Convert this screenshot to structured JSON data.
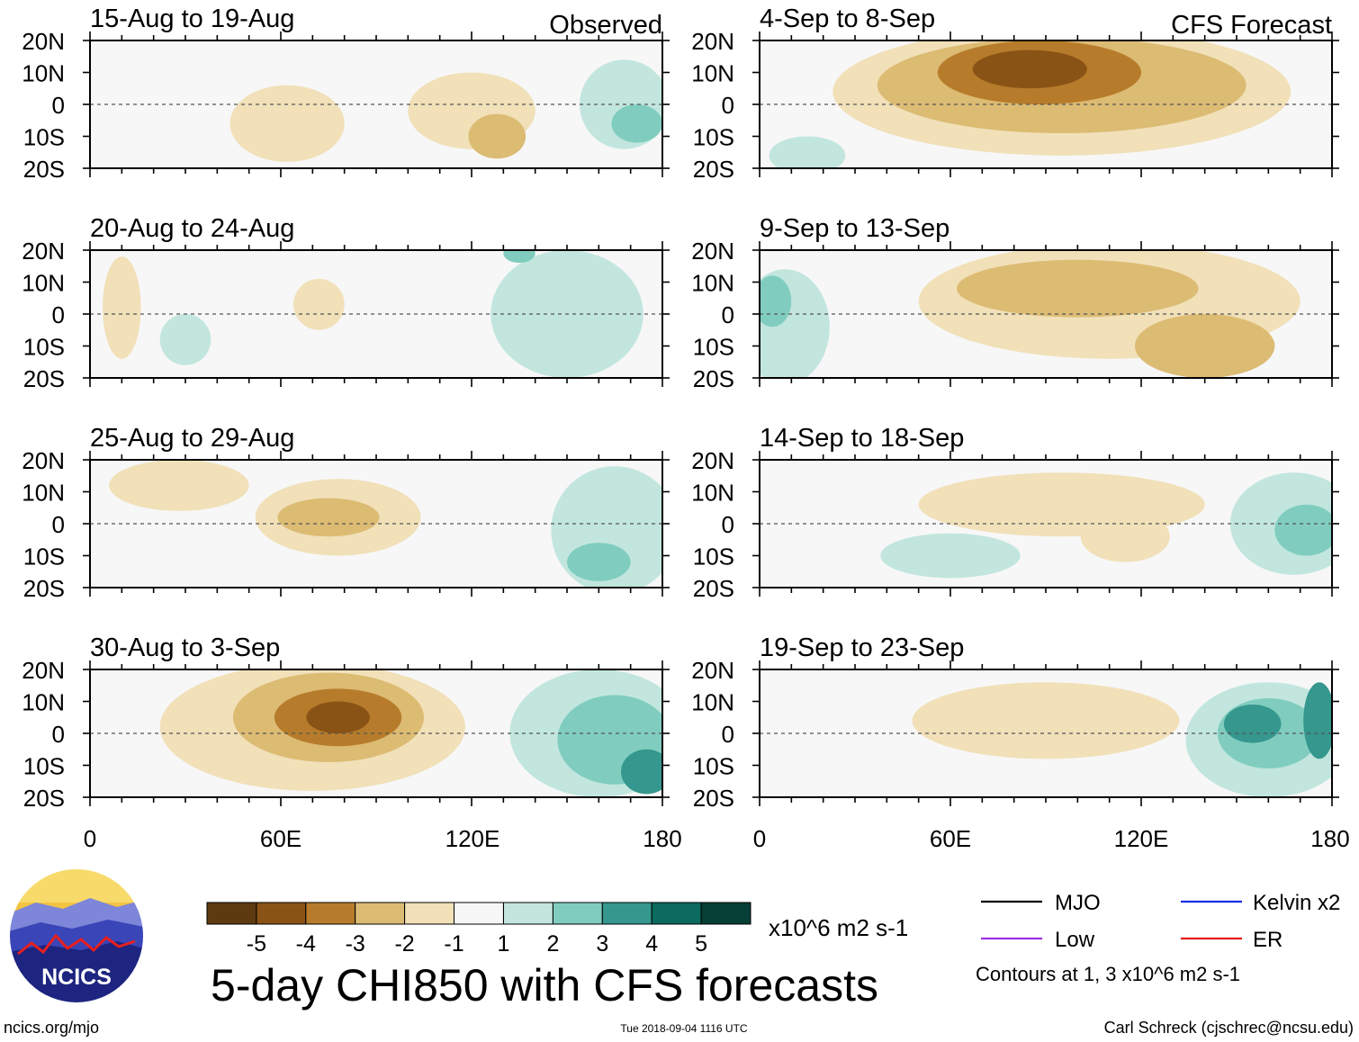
{
  "chart_data": {
    "type": "heatmap",
    "title": "5-day CHI850 with CFS forecasts",
    "variable": "CHI850",
    "units": "x10^6 m2 s-1",
    "column_labels": {
      "observed": "Observed",
      "forecast": "CFS Forecast"
    },
    "x_range": [
      0,
      180
    ],
    "y_range": [
      -20,
      20
    ],
    "x_ticks": [
      0,
      60,
      120,
      180
    ],
    "x_tick_labels": [
      "0",
      "60E",
      "120E",
      "180"
    ],
    "y_ticks": [
      20,
      10,
      0,
      -10,
      -20
    ],
    "y_tick_labels": [
      "20N",
      "10N",
      "0",
      "10S",
      "20S"
    ],
    "colorbar": {
      "levels": [
        -5,
        -4,
        -3,
        -2,
        -1,
        1,
        2,
        3,
        4,
        5
      ],
      "labels": [
        "-5",
        "-4",
        "-3",
        "-2",
        "-1",
        "1",
        "2",
        "3",
        "4",
        "5"
      ],
      "colors": [
        "#5e3a10",
        "#8a5316",
        "#b77c2b",
        "#dcbb73",
        "#f1e0b8",
        "#f7f7f7",
        "#c2e6de",
        "#80cdbf",
        "#35978e",
        "#0b6b5e",
        "#063f36"
      ]
    },
    "legend": [
      {
        "label": "MJO",
        "color": "#000000"
      },
      {
        "label": "Kelvin x2",
        "color": "#1a2ee6"
      },
      {
        "label": "Low",
        "color": "#9b30e6"
      },
      {
        "label": "ER",
        "color": "#e61a1a"
      }
    ],
    "contour_note": "Contours at 1, 3 x10^6 m2 s-1",
    "panels": [
      {
        "id": "obs-1",
        "label": "15-Aug to 19-Aug",
        "kind": "observed",
        "fields": [
          {
            "lon": 62,
            "lat": -6,
            "rx": 18,
            "ry": 12,
            "value": -1.2
          },
          {
            "lon": 120,
            "lat": -2,
            "rx": 20,
            "ry": 12,
            "value": -1.4
          },
          {
            "lon": 128,
            "lat": -10,
            "rx": 9,
            "ry": 7,
            "value": -2.2
          },
          {
            "lon": 168,
            "lat": 0,
            "rx": 14,
            "ry": 14,
            "value": 1.3
          },
          {
            "lon": 172,
            "lat": -6,
            "rx": 8,
            "ry": 6,
            "value": 2.1
          }
        ]
      },
      {
        "id": "obs-2",
        "label": "20-Aug to 24-Aug",
        "kind": "observed",
        "fields": [
          {
            "lon": 72,
            "lat": 3,
            "rx": 8,
            "ry": 8,
            "value": -1.2
          },
          {
            "lon": 10,
            "lat": 2,
            "rx": 6,
            "ry": 16,
            "value": -1.1
          },
          {
            "lon": 30,
            "lat": -8,
            "rx": 8,
            "ry": 8,
            "value": 1.2
          },
          {
            "lon": 150,
            "lat": 0,
            "rx": 24,
            "ry": 20,
            "value": 1.3
          },
          {
            "lon": 135,
            "lat": 19,
            "rx": 5,
            "ry": 3,
            "value": 2.2
          }
        ]
      },
      {
        "id": "obs-3",
        "label": "25-Aug to 29-Aug",
        "kind": "observed",
        "fields": [
          {
            "lon": 28,
            "lat": 12,
            "rx": 22,
            "ry": 8,
            "value": -1.1
          },
          {
            "lon": 78,
            "lat": 2,
            "rx": 26,
            "ry": 12,
            "value": -1.6
          },
          {
            "lon": 75,
            "lat": 2,
            "rx": 16,
            "ry": 6,
            "value": -2.3
          },
          {
            "lon": 165,
            "lat": -2,
            "rx": 20,
            "ry": 20,
            "value": 1.4
          },
          {
            "lon": 160,
            "lat": -12,
            "rx": 10,
            "ry": 6,
            "value": 2.2
          }
        ]
      },
      {
        "id": "obs-4",
        "label": "30-Aug to 3-Sep",
        "kind": "observed",
        "fields": [
          {
            "lon": 70,
            "lat": 2,
            "rx": 48,
            "ry": 20,
            "value": -1.3
          },
          {
            "lon": 75,
            "lat": 5,
            "rx": 30,
            "ry": 14,
            "value": -2.4
          },
          {
            "lon": 78,
            "lat": 5,
            "rx": 20,
            "ry": 9,
            "value": -3.3
          },
          {
            "lon": 78,
            "lat": 5,
            "rx": 10,
            "ry": 5,
            "value": -4.2
          },
          {
            "lon": 160,
            "lat": 0,
            "rx": 28,
            "ry": 20,
            "value": 1.3
          },
          {
            "lon": 165,
            "lat": -2,
            "rx": 18,
            "ry": 14,
            "value": 2.2
          },
          {
            "lon": 175,
            "lat": -12,
            "rx": 8,
            "ry": 7,
            "value": 3.1
          }
        ]
      },
      {
        "id": "fc-1",
        "label": "4-Sep to 8-Sep",
        "kind": "forecast",
        "fields": [
          {
            "lon": 95,
            "lat": 4,
            "rx": 72,
            "ry": 20,
            "value": -1.3
          },
          {
            "lon": 95,
            "lat": 6,
            "rx": 58,
            "ry": 15,
            "value": -2.3
          },
          {
            "lon": 88,
            "lat": 10,
            "rx": 32,
            "ry": 10,
            "value": -3.3
          },
          {
            "lon": 85,
            "lat": 11,
            "rx": 18,
            "ry": 6,
            "value": -4.3
          },
          {
            "lon": 15,
            "lat": -16,
            "rx": 12,
            "ry": 6,
            "value": 1.2
          }
        ]
      },
      {
        "id": "fc-2",
        "label": "9-Sep to 13-Sep",
        "kind": "forecast",
        "fields": [
          {
            "lon": 110,
            "lat": 4,
            "rx": 60,
            "ry": 18,
            "value": -1.3
          },
          {
            "lon": 100,
            "lat": 8,
            "rx": 38,
            "ry": 9,
            "value": -2.3
          },
          {
            "lon": 140,
            "lat": -10,
            "rx": 22,
            "ry": 10,
            "value": -2.3
          },
          {
            "lon": 8,
            "lat": -4,
            "rx": 14,
            "ry": 18,
            "value": 1.3
          },
          {
            "lon": 4,
            "lat": 4,
            "rx": 6,
            "ry": 8,
            "value": 2.2
          }
        ]
      },
      {
        "id": "fc-3",
        "label": "14-Sep to 18-Sep",
        "kind": "forecast",
        "fields": [
          {
            "lon": 95,
            "lat": 6,
            "rx": 45,
            "ry": 10,
            "value": -1.2
          },
          {
            "lon": 115,
            "lat": -4,
            "rx": 14,
            "ry": 8,
            "value": -1.2
          },
          {
            "lon": 60,
            "lat": -10,
            "rx": 22,
            "ry": 7,
            "value": 1.2
          },
          {
            "lon": 168,
            "lat": 0,
            "rx": 20,
            "ry": 16,
            "value": 1.3
          },
          {
            "lon": 172,
            "lat": -2,
            "rx": 10,
            "ry": 8,
            "value": 2.2
          }
        ]
      },
      {
        "id": "fc-4",
        "label": "19-Sep to 23-Sep",
        "kind": "forecast",
        "fields": [
          {
            "lon": 90,
            "lat": 4,
            "rx": 42,
            "ry": 12,
            "value": -1.2
          },
          {
            "lon": 160,
            "lat": -2,
            "rx": 26,
            "ry": 18,
            "value": 1.4
          },
          {
            "lon": 160,
            "lat": 0,
            "rx": 16,
            "ry": 11,
            "value": 2.3
          },
          {
            "lon": 155,
            "lat": 3,
            "rx": 9,
            "ry": 6,
            "value": 3.2
          },
          {
            "lon": 176,
            "lat": 4,
            "rx": 5,
            "ry": 12,
            "value": 3.3
          }
        ]
      }
    ]
  },
  "footer": {
    "logo_text": "NCICS",
    "url": "ncics.org/mjo",
    "timestamp": "Tue 2018-09-04 1116 UTC",
    "author": "Carl Schreck (cjschrec@ncsu.edu)"
  }
}
